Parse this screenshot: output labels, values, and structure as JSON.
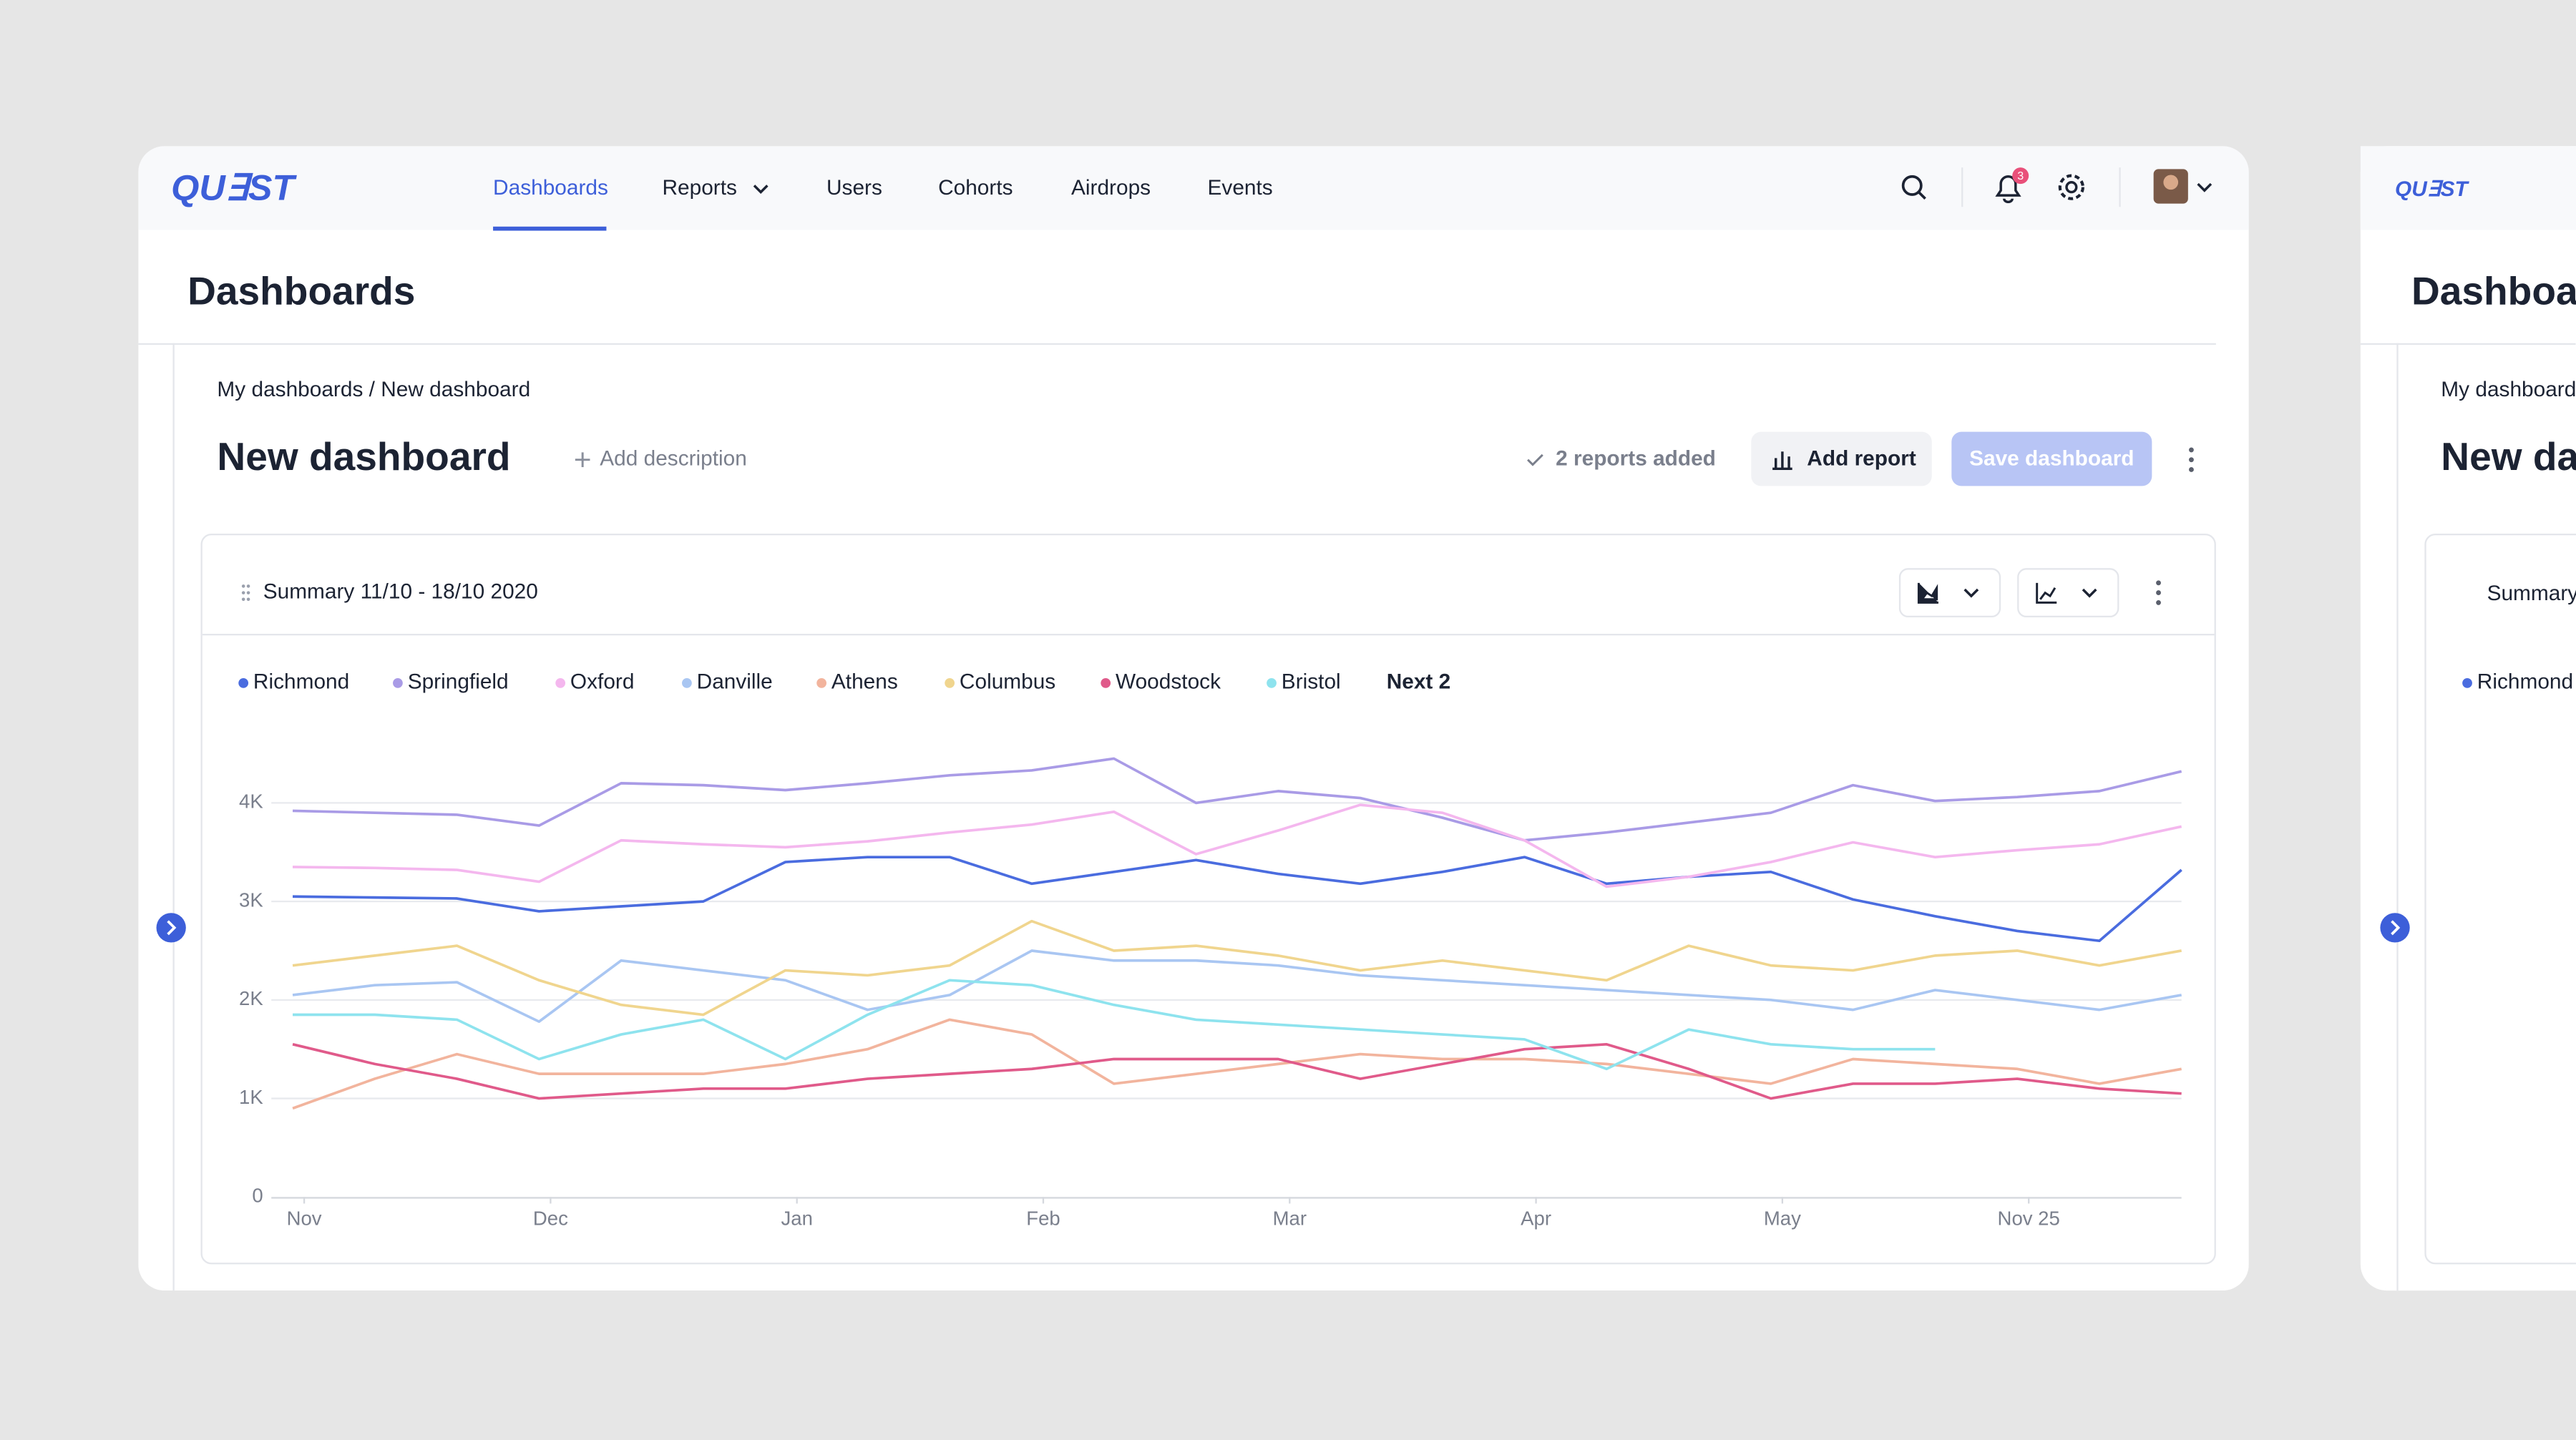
{
  "logo": "QU∃ST",
  "nav": {
    "items": [
      "Dashboards",
      "Reports",
      "Users",
      "Cohorts",
      "Airdrops",
      "Events"
    ],
    "active": "Dashboards",
    "badge": "3"
  },
  "header": {
    "title": "Dashboards"
  },
  "breadcrumb": "My dashboards / New dashboard",
  "dashboard": {
    "title": "New dashboard",
    "add_description": "Add description",
    "status": "2 reports added",
    "add_report": "Add report",
    "save": "Save dashboard"
  },
  "card": {
    "title": "Summary 11/10 - 18/10 2020",
    "legend_more": "Next 2"
  },
  "chart_data": {
    "type": "line",
    "categories": [
      "Nov",
      null,
      null,
      "Dec",
      null,
      null,
      "Jan",
      null,
      null,
      "Feb",
      null,
      null,
      "Mar",
      null,
      null,
      "Apr",
      null,
      null,
      "May",
      null,
      null,
      "Nov 25",
      null,
      null
    ],
    "ylim": [
      0,
      4500
    ],
    "yticks": [
      0,
      {
        "value": 1000,
        "label": "1K"
      },
      {
        "value": 2000,
        "label": "2K"
      },
      {
        "value": 3000,
        "label": "3K"
      },
      {
        "value": 4000,
        "label": "4K"
      }
    ],
    "grid": true,
    "series": [
      {
        "name": "Richmond",
        "color": "#4a6cdf",
        "values": [
          3050,
          3040,
          3030,
          2900,
          2950,
          3000,
          3400,
          3450,
          3450,
          3180,
          3300,
          3420,
          3280,
          3180,
          3300,
          3450,
          3180,
          3250,
          3300,
          3020,
          2850,
          2700,
          2600,
          3320
        ]
      },
      {
        "name": "Springfield",
        "color": "#a99be6",
        "values": [
          3920,
          3900,
          3880,
          3770,
          4200,
          4180,
          4130,
          4200,
          4280,
          4330,
          4450,
          4000,
          4120,
          4050,
          3850,
          3620,
          3700,
          3800,
          3900,
          4180,
          4020,
          4060,
          4120,
          4320
        ]
      },
      {
        "name": "Oxford",
        "color": "#f4b7ee",
        "values": [
          3350,
          3340,
          3320,
          3200,
          3620,
          3580,
          3550,
          3610,
          3700,
          3780,
          3910,
          3480,
          3720,
          3980,
          3900,
          3620,
          3150,
          3250,
          3400,
          3600,
          3450,
          3520,
          3580,
          3760
        ]
      },
      {
        "name": "Danville",
        "color": "#a9c6f2",
        "values": [
          2050,
          2150,
          2180,
          1780,
          2400,
          2300,
          2200,
          1900,
          2050,
          2500,
          2400,
          2400,
          2350,
          2250,
          2200,
          2150,
          2100,
          2050,
          2000,
          1900,
          2100,
          2000,
          1900,
          2050
        ]
      },
      {
        "name": "Athens",
        "color": "#f2b49d",
        "values": [
          900,
          1200,
          1450,
          1250,
          1250,
          1250,
          1350,
          1500,
          1800,
          1650,
          1150,
          1250,
          1350,
          1450,
          1400,
          1400,
          1350,
          1250,
          1150,
          1400,
          1350,
          1300,
          1150,
          1300
        ]
      },
      {
        "name": "Columbus",
        "color": "#f0d58e",
        "values": [
          2350,
          2450,
          2550,
          2200,
          1950,
          1850,
          2300,
          2250,
          2350,
          2800,
          2500,
          2550,
          2450,
          2300,
          2400,
          2300,
          2200,
          2550,
          2350,
          2300,
          2450,
          2500,
          2350,
          2500
        ]
      },
      {
        "name": "Woodstock",
        "color": "#e05a8a",
        "values": [
          1550,
          1350,
          1200,
          1000,
          1050,
          1100,
          1100,
          1200,
          1250,
          1300,
          1400,
          1400,
          1400,
          1200,
          1350,
          1500,
          1550,
          1300,
          1000,
          1150,
          1150,
          1200,
          1100,
          1050
        ]
      },
      {
        "name": "Bristol",
        "color": "#8ee3ee",
        "values": [
          1850,
          1850,
          1800,
          1400,
          1650,
          1800,
          1400,
          1850,
          2200,
          2150,
          1950,
          1800,
          1750,
          1700,
          1650,
          1600,
          1300,
          1700,
          1550,
          1500,
          1500,
          null,
          null,
          null
        ]
      }
    ]
  }
}
